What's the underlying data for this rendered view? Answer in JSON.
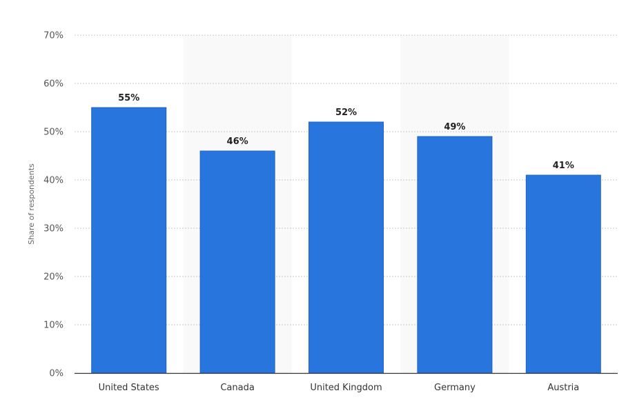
{
  "chart_data": {
    "type": "bar",
    "ylabel": "Share of respondents",
    "categories": [
      "United States",
      "Canada",
      "United Kingdom",
      "Germany",
      "Austria"
    ],
    "values": [
      55,
      46,
      52,
      49,
      41
    ],
    "data_labels": [
      "55%",
      "46%",
      "52%",
      "49%",
      "41%"
    ],
    "ylim": [
      0,
      70
    ],
    "yticks": [
      0,
      10,
      20,
      30,
      40,
      50,
      60,
      70
    ],
    "ytick_labels": [
      "0%",
      "10%",
      "20%",
      "30%",
      "40%",
      "50%",
      "60%",
      "70%"
    ],
    "grid": true,
    "bar_color": "#2775dd",
    "band_color": "#f9f9f9"
  }
}
